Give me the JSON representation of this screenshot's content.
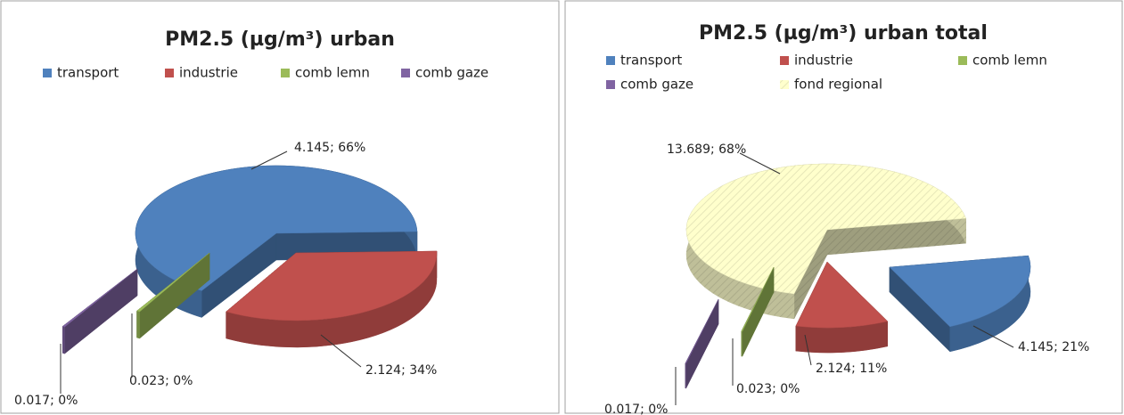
{
  "chart_data": [
    {
      "type": "pie",
      "title": "PM2.5 (µg/m³) urban",
      "legend": "top",
      "categories": [
        "transport",
        "industrie",
        "comb lemn",
        "comb gaze"
      ],
      "values": [
        4.145,
        2.124,
        0.023,
        0.017
      ],
      "value_labels": [
        "4.145; 66%",
        "2.124; 34%",
        "0.023; 0%",
        "0.017; 0%"
      ],
      "colors": [
        "#4f81bd",
        "#c0504d",
        "#9bbb59",
        "#8064a2"
      ],
      "hatch": [
        false,
        false,
        false,
        false
      ]
    },
    {
      "type": "pie",
      "title": "PM2.5 (µg/m³) urban total",
      "legend": "top",
      "categories": [
        "transport",
        "industrie",
        "comb lemn",
        "comb gaze",
        "fond regional"
      ],
      "values": [
        4.145,
        2.124,
        0.023,
        0.017,
        13.689
      ],
      "value_labels": [
        "4.145; 21%",
        "2.124; 11%",
        "0.023; 0%",
        "0.017; 0%",
        "13.689; 68%"
      ],
      "colors": [
        "#4f81bd",
        "#c0504d",
        "#9bbb59",
        "#8064a2",
        "#ffffcc"
      ],
      "hatch": [
        false,
        false,
        false,
        false,
        true
      ]
    }
  ]
}
